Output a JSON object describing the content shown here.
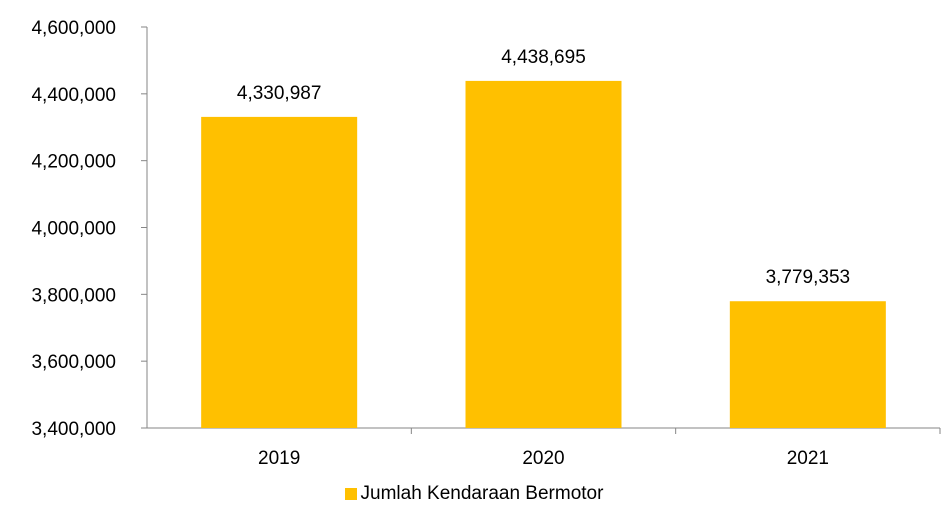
{
  "chart_data": {
    "type": "bar",
    "categories": [
      "2019",
      "2020",
      "2021"
    ],
    "series": [
      {
        "name": "Jumlah Kendaraan Bermotor",
        "values": [
          4330987,
          4438695,
          3779353
        ]
      }
    ],
    "data_labels": [
      "4,330,987",
      "4,438,695",
      "3,779,353"
    ],
    "ylim": [
      3400000,
      4600000
    ],
    "yticks": [
      3400000,
      3600000,
      3800000,
      4000000,
      4200000,
      4400000,
      4600000
    ],
    "ytick_labels": [
      "3,400,000",
      "3,600,000",
      "3,800,000",
      "4,000,000",
      "4,200,000",
      "4,400,000",
      "4,600,000"
    ],
    "grid": false,
    "legend_position": "bottom",
    "colors": {
      "bar": "#FFC000",
      "axis": "#868686",
      "text": "#000000"
    }
  }
}
